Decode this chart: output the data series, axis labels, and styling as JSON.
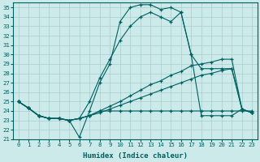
{
  "xlabel": "Humidex (Indice chaleur)",
  "bg_color": "#cceaea",
  "grid_color": "#aacccc",
  "line_color": "#006060",
  "xlim": [
    -0.5,
    23.5
  ],
  "ylim": [
    21,
    35.5
  ],
  "yticks": [
    21,
    22,
    23,
    24,
    25,
    26,
    27,
    28,
    29,
    30,
    31,
    32,
    33,
    34,
    35
  ],
  "xticks": [
    0,
    1,
    2,
    3,
    4,
    5,
    6,
    7,
    8,
    9,
    10,
    11,
    12,
    13,
    14,
    15,
    16,
    17,
    18,
    19,
    20,
    21,
    22,
    23
  ],
  "hours": [
    0,
    1,
    2,
    3,
    4,
    5,
    6,
    7,
    8,
    9,
    10,
    11,
    12,
    13,
    14,
    15,
    16,
    17,
    18,
    19,
    20,
    21,
    22,
    23
  ],
  "curve_main": [
    25.0,
    24.3,
    23.5,
    23.2,
    23.2,
    23.0,
    21.2,
    24.0,
    27.0,
    29.0,
    33.5,
    35.0,
    35.3,
    35.3,
    34.8,
    35.0,
    34.5,
    30.0,
    28.5,
    28.5,
    28.5,
    28.5,
    24.2,
    23.8
  ],
  "curve_steep": [
    25.0,
    24.3,
    23.5,
    23.2,
    23.2,
    23.0,
    23.2,
    25.0,
    27.5,
    29.5,
    31.5,
    33.0,
    34.0,
    34.5,
    34.0,
    33.5,
    34.5,
    30.0,
    23.5,
    23.5,
    23.5,
    23.5,
    24.2,
    23.8
  ],
  "line_flat": [
    25.0,
    24.3,
    23.5,
    23.2,
    23.2,
    23.0,
    23.2,
    23.5,
    24.0,
    24.0,
    24.0,
    24.0,
    24.0,
    24.0,
    24.0,
    24.0,
    24.0,
    24.0,
    24.0,
    24.0,
    24.0,
    24.0,
    24.0,
    24.0
  ],
  "line_rise1": [
    25.0,
    24.3,
    23.5,
    23.2,
    23.2,
    23.0,
    23.2,
    23.5,
    23.8,
    24.2,
    24.6,
    25.0,
    25.4,
    25.8,
    26.2,
    26.6,
    27.0,
    27.4,
    27.8,
    28.0,
    28.3,
    28.5,
    24.2,
    23.8
  ],
  "line_rise2": [
    25.0,
    24.3,
    23.5,
    23.2,
    23.2,
    23.0,
    23.2,
    23.5,
    24.0,
    24.5,
    25.0,
    25.6,
    26.2,
    26.8,
    27.2,
    27.8,
    28.2,
    28.8,
    29.0,
    29.2,
    29.5,
    29.5,
    24.2,
    23.8
  ]
}
